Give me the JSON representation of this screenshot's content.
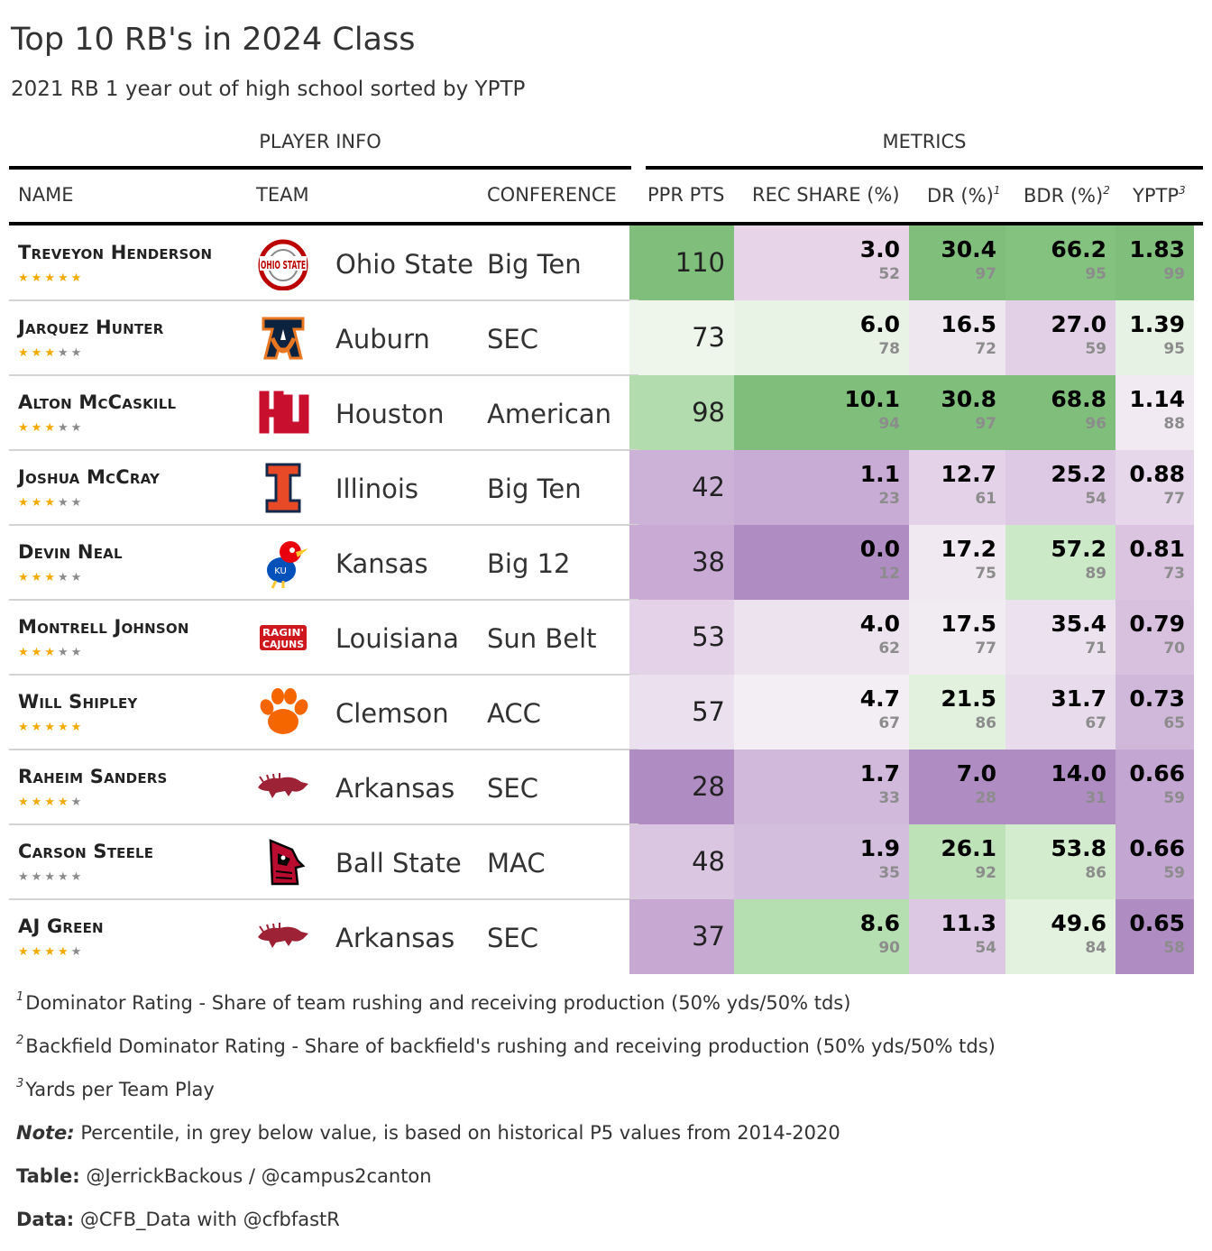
{
  "chart_data": {
    "type": "table",
    "title": "Top 10 RB's in 2024 Class",
    "subtitle": "2021 RB 1 year out of high school sorted by YPTP",
    "spanners": [
      "PLAYER INFO",
      "METRICS"
    ],
    "columns": [
      {
        "key": "name",
        "label": "NAME"
      },
      {
        "key": "team",
        "label": "TEAM"
      },
      {
        "key": "conference",
        "label": "CONFERENCE"
      },
      {
        "key": "ppr",
        "label": "PPR PTS"
      },
      {
        "key": "rec_share",
        "label": "REC SHARE (%)"
      },
      {
        "key": "dr",
        "label": "DR (%)",
        "footnote": "1"
      },
      {
        "key": "bdr",
        "label": "BDR (%)",
        "footnote": "2"
      },
      {
        "key": "yptp",
        "label": "YPTP",
        "footnote": "3"
      }
    ],
    "rows": [
      {
        "name": "Treveyon Henderson",
        "stars": 5,
        "team": "Ohio State",
        "logo": "ohio-state-logo",
        "conference": "Big Ten",
        "ppr": "110",
        "rec_share": "3.0",
        "rec_share_pct": "52",
        "dr": "30.4",
        "dr_pct": "97",
        "bdr": "66.2",
        "bdr_pct": "95",
        "yptp": "1.83",
        "yptp_pct": "99",
        "colors": {
          "ppr": "#7fbf7b",
          "rec_share": "#e7d4e8",
          "dr": "#7fbf7b",
          "bdr": "#84c27f",
          "yptp": "#7fbf7b"
        }
      },
      {
        "name": "Jarquez Hunter",
        "stars": 3,
        "team": "Auburn",
        "logo": "auburn-logo",
        "conference": "SEC",
        "ppr": "73",
        "rec_share": "6.0",
        "rec_share_pct": "78",
        "dr": "16.5",
        "dr_pct": "72",
        "bdr": "27.0",
        "bdr_pct": "59",
        "yptp": "1.39",
        "yptp_pct": "95",
        "colors": {
          "ppr": "#eef6ec",
          "rec_share": "#e8f3e6",
          "dr": "#efe7f0",
          "bdr": "#e2d1e6",
          "yptp": "#e6f2e3"
        }
      },
      {
        "name": "Alton McCaskill",
        "stars": 3,
        "team": "Houston",
        "logo": "houston-logo",
        "conference": "American",
        "ppr": "98",
        "rec_share": "10.1",
        "rec_share_pct": "94",
        "dr": "30.8",
        "dr_pct": "97",
        "bdr": "68.8",
        "bdr_pct": "96",
        "yptp": "1.14",
        "yptp_pct": "88",
        "colors": {
          "ppr": "#b2dcad",
          "rec_share": "#7fbf7b",
          "dr": "#7fbf7b",
          "bdr": "#7fbf7b",
          "yptp": "#f1eaf2"
        }
      },
      {
        "name": "Joshua McCray",
        "stars": 3,
        "team": "Illinois",
        "logo": "illinois-logo",
        "conference": "Big Ten",
        "ppr": "42",
        "rec_share": "1.1",
        "rec_share_pct": "23",
        "dr": "12.7",
        "dr_pct": "61",
        "bdr": "25.2",
        "bdr_pct": "54",
        "yptp": "0.88",
        "yptp_pct": "77",
        "colors": {
          "ppr": "#cdb2d8",
          "rec_share": "#c8acd5",
          "dr": "#e4d3e8",
          "bdr": "#ddc9e3",
          "yptp": "#e6d7ea"
        }
      },
      {
        "name": "Devin Neal",
        "stars": 3,
        "team": "Kansas",
        "logo": "kansas-logo",
        "conference": "Big 12",
        "ppr": "38",
        "rec_share": "0.0",
        "rec_share_pct": "12",
        "dr": "17.2",
        "dr_pct": "75",
        "bdr": "57.2",
        "bdr_pct": "89",
        "yptp": "0.81",
        "yptp_pct": "73",
        "colors": {
          "ppr": "#c8aad4",
          "rec_share": "#af8dc3",
          "dr": "#f0e9f1",
          "bdr": "#cce9c7",
          "yptp": "#dac4e0"
        }
      },
      {
        "name": "Montrell Johnson",
        "stars": 3,
        "team": "Louisiana",
        "logo": "louisiana-logo",
        "conference": "Sun Belt",
        "ppr": "53",
        "rec_share": "4.0",
        "rec_share_pct": "62",
        "dr": "17.5",
        "dr_pct": "77",
        "bdr": "35.4",
        "bdr_pct": "71",
        "yptp": "0.79",
        "yptp_pct": "70",
        "colors": {
          "ppr": "#e4d3e8",
          "rec_share": "#ede3ee",
          "dr": "#f1ebf2",
          "bdr": "#ece1ee",
          "yptp": "#d8c1df"
        }
      },
      {
        "name": "Will Shipley",
        "stars": 5,
        "team": "Clemson",
        "logo": "clemson-logo",
        "conference": "ACC",
        "ppr": "57",
        "rec_share": "4.7",
        "rec_share_pct": "67",
        "dr": "21.5",
        "dr_pct": "86",
        "bdr": "31.7",
        "bdr_pct": "67",
        "yptp": "0.73",
        "yptp_pct": "65",
        "colors": {
          "ppr": "#ebe0ed",
          "rec_share": "#f2eef3",
          "dr": "#e1f1de",
          "bdr": "#e8dbeb",
          "yptp": "#d0b8da"
        }
      },
      {
        "name": "Raheim Sanders",
        "stars": 4,
        "team": "Arkansas",
        "logo": "arkansas-logo",
        "conference": "SEC",
        "ppr": "28",
        "rec_share": "1.7",
        "rec_share_pct": "33",
        "dr": "7.0",
        "dr_pct": "28",
        "bdr": "14.0",
        "bdr_pct": "31",
        "yptp": "0.66",
        "yptp_pct": "59",
        "colors": {
          "ppr": "#af8dc3",
          "rec_share": "#d1b9db",
          "dr": "#af8dc3",
          "bdr": "#af8dc3",
          "yptp": "#c3a6d1"
        }
      },
      {
        "name": "Carson Steele",
        "stars": 0,
        "team": "Ball State",
        "logo": "ball-state-logo",
        "conference": "MAC",
        "ppr": "48",
        "rec_share": "1.9",
        "rec_share_pct": "35",
        "dr": "26.1",
        "dr_pct": "92",
        "bdr": "53.8",
        "bdr_pct": "86",
        "yptp": "0.66",
        "yptp_pct": "59",
        "colors": {
          "ppr": "#dbc6e1",
          "rec_share": "#d4bedd",
          "dr": "#bde2b8",
          "bdr": "#d3ecce",
          "yptp": "#c3a6d1"
        }
      },
      {
        "name": "AJ Green",
        "stars": 4,
        "team": "Arkansas",
        "logo": "arkansas-logo",
        "conference": "SEC",
        "ppr": "37",
        "rec_share": "8.6",
        "rec_share_pct": "90",
        "dr": "11.3",
        "dr_pct": "54",
        "bdr": "49.6",
        "bdr_pct": "84",
        "yptp": "0.65",
        "yptp_pct": "58",
        "colors": {
          "ppr": "#c6a8d3",
          "rec_share": "#b5dfb1",
          "dr": "#dcc8e2",
          "bdr": "#e2f2df",
          "yptp": "#af8dc3"
        }
      }
    ]
  },
  "footnotes": {
    "n1_mark": "1",
    "n1_text": "Dominator Rating - Share of team rushing and receiving production (50% yds/50% tds)",
    "n2_mark": "2",
    "n2_text": "Backfield Dominator Rating - Share of backfield's rushing and receiving production (50% yds/50% tds)",
    "n3_mark": "3",
    "n3_text": "Yards per Team Play"
  },
  "source_notes": {
    "note_label": "Note:",
    "note_text": " Percentile, in grey below value, is based on historical P5 values from 2014-2020",
    "table_label": "Table:",
    "table_text": " @JerrickBackous / @campus2canton",
    "data_label": "Data:",
    "data_text": " @CFB_Data with @cfbfastR"
  },
  "colors": {
    "star_filled": "#f2a900",
    "star_empty": "#8a8a8a"
  }
}
